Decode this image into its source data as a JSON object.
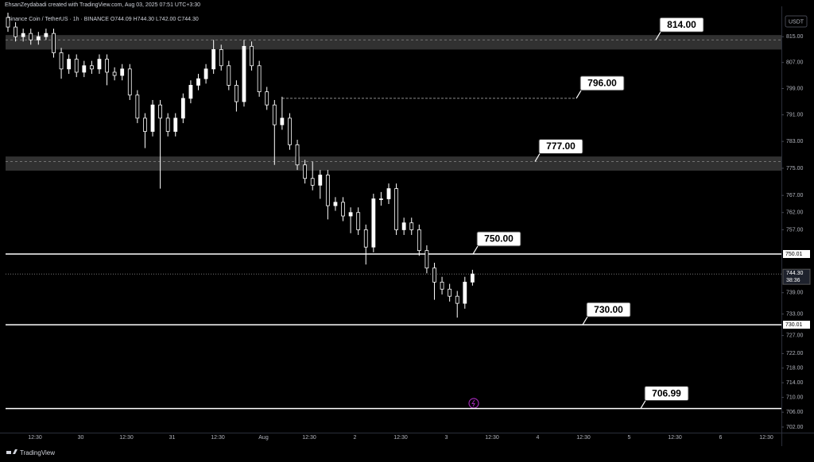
{
  "header": "EhsanZeydabadi created with TradingView.com, Aug 03, 2025 07:51 UTC+3:30",
  "legend": "Binance Coin / TetherUS · 1h · BINANCE  O744.09 H744.30 L742.00 C744.30",
  "currency": "USDT",
  "footer": "TradingView",
  "chart_data": {
    "type": "candlestick",
    "log_scale": true,
    "grid": false,
    "up_color": "#ffffff",
    "down_color": "#000000",
    "wick_color": "#ffffff",
    "categories": [
      "12:30",
      "30",
      "12:30",
      "31",
      "12:30",
      "Aug",
      "12:30",
      "2",
      "12:30",
      "3",
      "12:30",
      "4",
      "12:30",
      "5",
      "12:30",
      "6",
      "12:30"
    ],
    "ylim": [
      700.5,
      824
    ],
    "yticks": [
      {
        "value": 815,
        "label": "815.00"
      },
      {
        "value": 807,
        "label": "807.00"
      },
      {
        "value": 799,
        "label": "799.00"
      },
      {
        "value": 791,
        "label": "791.00"
      },
      {
        "value": 783,
        "label": "783.00"
      },
      {
        "value": 775,
        "label": "775.00"
      },
      {
        "value": 767,
        "label": "767.00"
      },
      {
        "value": 762,
        "label": "762.00"
      },
      {
        "value": 757,
        "label": "757.00"
      },
      {
        "value": 739,
        "label": "739.00"
      },
      {
        "value": 733,
        "label": "733.00"
      },
      {
        "value": 727,
        "label": "727.00"
      },
      {
        "value": 722,
        "label": "722.00"
      },
      {
        "value": 718,
        "label": "718.00"
      },
      {
        "value": 714,
        "label": "714.00"
      },
      {
        "value": 710,
        "label": "710.00"
      },
      {
        "value": 706,
        "label": "706.00"
      },
      {
        "value": 702,
        "label": "702.00"
      }
    ],
    "open": [
      821,
      818,
      815,
      816,
      814,
      815,
      816,
      810,
      805,
      808,
      804,
      806,
      805,
      808,
      804,
      803,
      805,
      797,
      790,
      786,
      794,
      790,
      786,
      790,
      796,
      800,
      802,
      805,
      811,
      806,
      800,
      795,
      812,
      806,
      798,
      794,
      788,
      790,
      782,
      776,
      772,
      770,
      773,
      764,
      765,
      761,
      762,
      757,
      752,
      766,
      766,
      769,
      757,
      759,
      757,
      751,
      746,
      742,
      740,
      738,
      736,
      742
    ],
    "high": [
      822.5,
      819.5,
      817.5,
      817.5,
      816.5,
      817.5,
      817.5,
      811.5,
      809.5,
      809.5,
      807.5,
      807.5,
      809.5,
      809.5,
      805.5,
      806.5,
      806.5,
      798.5,
      791.5,
      795.5,
      795.5,
      791.5,
      791.5,
      797.5,
      801.5,
      803.5,
      806.5,
      814,
      812.5,
      807.5,
      801.5,
      814,
      813.5,
      807.5,
      799.5,
      795.5,
      796.5,
      791.5,
      783.5,
      777.5,
      777,
      774.5,
      774.5,
      766.5,
      766.5,
      763.5,
      763.5,
      758.5,
      767.5,
      768,
      770.5,
      770.5,
      760.5,
      760.5,
      758.5,
      752.5,
      747.5,
      743.5,
      741.5,
      739.5,
      743.5,
      745.5
    ],
    "low": [
      816.5,
      813.5,
      813.5,
      812.5,
      812.5,
      814,
      808.5,
      802,
      803.5,
      802.5,
      802.5,
      803.5,
      803.5,
      800,
      801.5,
      801.5,
      795.5,
      788.5,
      781,
      784.5,
      769,
      784.5,
      784.5,
      788.5,
      794.5,
      798.5,
      800.5,
      803.5,
      804.5,
      798.5,
      792,
      793.5,
      804.5,
      796.5,
      792.5,
      776,
      786.5,
      780.5,
      774.5,
      770.5,
      768.5,
      766,
      760,
      762.5,
      759.5,
      756,
      755.5,
      747,
      750.5,
      764,
      764.5,
      755.5,
      755.5,
      755.5,
      749.5,
      744.5,
      737,
      738.5,
      736.5,
      732,
      734.5,
      741
    ],
    "close": [
      818,
      815,
      816,
      814,
      815,
      816,
      810,
      805,
      808,
      804,
      806,
      805,
      808,
      804,
      803,
      805,
      797,
      790,
      786,
      794,
      790,
      786,
      790,
      796,
      800,
      802,
      805,
      811,
      806,
      800,
      795,
      812,
      806,
      798,
      794,
      788,
      790,
      782,
      776,
      772,
      770,
      773,
      764,
      765,
      761,
      762,
      757,
      752,
      766,
      766,
      769,
      757,
      759,
      757,
      751,
      746,
      742,
      740,
      738,
      736,
      742,
      744.3
    ],
    "levels": [
      {
        "value": 814,
        "label": "814.00",
        "zone": [
          811,
          815.5
        ]
      },
      {
        "value": 796,
        "label": "796.00",
        "style": "dashed"
      },
      {
        "value": 777,
        "label": "777.00",
        "zone": [
          774.3,
          778.5
        ]
      },
      {
        "value": 750,
        "label": "750.00",
        "style": "solid"
      },
      {
        "value": 730,
        "label": "730.00",
        "style": "solid"
      },
      {
        "value": 706.99,
        "label": "706.99",
        "style": "solid"
      }
    ],
    "price_markers": [
      750.01,
      730.01
    ],
    "last_price": {
      "value": 744.3,
      "label": "744.30",
      "countdown": "38:36"
    }
  }
}
